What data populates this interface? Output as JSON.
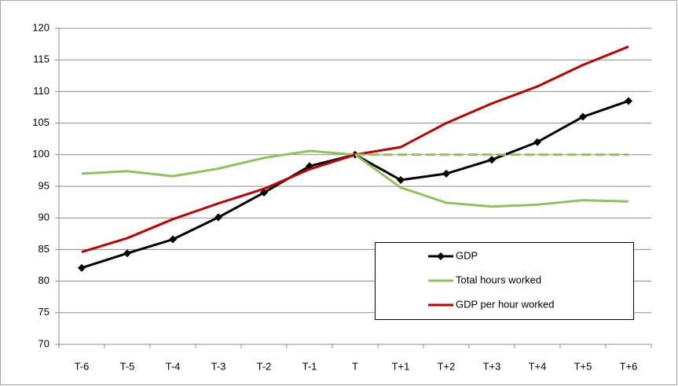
{
  "chart_data": {
    "type": "line",
    "categories": [
      "T-6",
      "T-5",
      "T-4",
      "T-3",
      "T-2",
      "T-1",
      "T",
      "T+1",
      "T+2",
      "T+3",
      "T+4",
      "T+5",
      "T+6"
    ],
    "series": [
      {
        "name": "GDP",
        "color": "#000000",
        "marker": "diamond",
        "values": [
          82.1,
          84.4,
          86.6,
          90.1,
          94.0,
          98.2,
          100,
          96.0,
          97.0,
          99.2,
          102.0,
          106.0,
          108.5
        ]
      },
      {
        "name": "Total hours worked",
        "color": "#92c05a",
        "values": [
          97.0,
          97.4,
          96.6,
          97.8,
          99.5,
          100.6,
          100,
          94.8,
          92.4,
          91.8,
          92.1,
          92.8,
          92.6
        ]
      },
      {
        "name": "GDP per hour  worked",
        "color": "#c00000",
        "values": [
          84.6,
          86.8,
          89.8,
          92.3,
          94.6,
          97.7,
          100,
          101.2,
          105.0,
          108.1,
          110.8,
          114.2,
          117.1
        ]
      },
      {
        "color": "#92c05a",
        "dashed": true,
        "values": [
          null,
          null,
          null,
          null,
          null,
          null,
          100,
          100,
          100,
          100,
          100,
          100,
          100
        ]
      }
    ],
    "ylim": [
      70,
      120
    ],
    "yticks": [
      70,
      75,
      80,
      85,
      90,
      95,
      100,
      105,
      110,
      115,
      120
    ],
    "grid": true,
    "legend": "lower-right"
  }
}
